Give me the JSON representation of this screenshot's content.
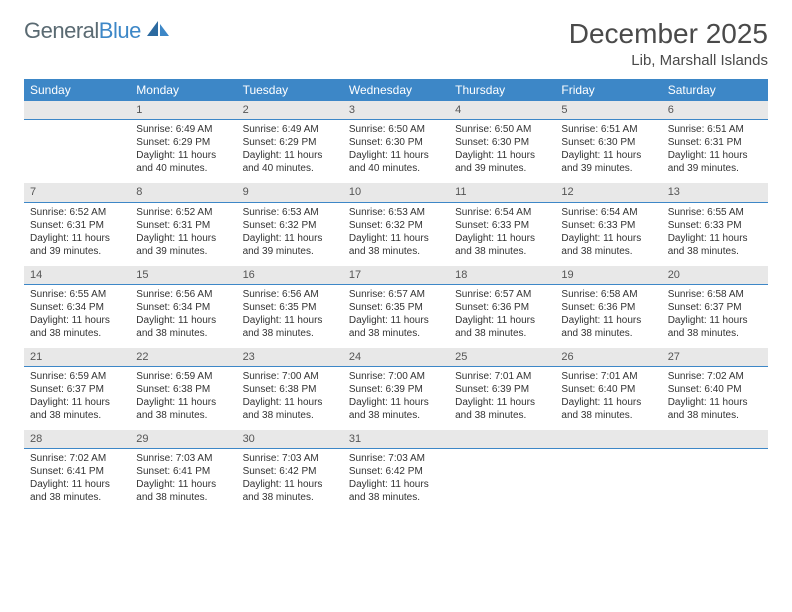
{
  "brand": {
    "part1": "General",
    "part2": "Blue"
  },
  "title": "December 2025",
  "location": "Lib, Marshall Islands",
  "colors": {
    "header_bg": "#3d87c7",
    "header_text": "#ffffff",
    "daynum_bg": "#e8e8e8",
    "text": "#333333",
    "rule": "#3d87c7"
  },
  "weekdays": [
    "Sunday",
    "Monday",
    "Tuesday",
    "Wednesday",
    "Thursday",
    "Friday",
    "Saturday"
  ],
  "weeks": [
    {
      "nums": [
        "",
        "1",
        "2",
        "3",
        "4",
        "5",
        "6"
      ],
      "cells": [
        null,
        {
          "sunrise": "6:49 AM",
          "sunset": "6:29 PM",
          "daylight": "11 hours and 40 minutes."
        },
        {
          "sunrise": "6:49 AM",
          "sunset": "6:29 PM",
          "daylight": "11 hours and 40 minutes."
        },
        {
          "sunrise": "6:50 AM",
          "sunset": "6:30 PM",
          "daylight": "11 hours and 40 minutes."
        },
        {
          "sunrise": "6:50 AM",
          "sunset": "6:30 PM",
          "daylight": "11 hours and 39 minutes."
        },
        {
          "sunrise": "6:51 AM",
          "sunset": "6:30 PM",
          "daylight": "11 hours and 39 minutes."
        },
        {
          "sunrise": "6:51 AM",
          "sunset": "6:31 PM",
          "daylight": "11 hours and 39 minutes."
        }
      ]
    },
    {
      "nums": [
        "7",
        "8",
        "9",
        "10",
        "11",
        "12",
        "13"
      ],
      "cells": [
        {
          "sunrise": "6:52 AM",
          "sunset": "6:31 PM",
          "daylight": "11 hours and 39 minutes."
        },
        {
          "sunrise": "6:52 AM",
          "sunset": "6:31 PM",
          "daylight": "11 hours and 39 minutes."
        },
        {
          "sunrise": "6:53 AM",
          "sunset": "6:32 PM",
          "daylight": "11 hours and 39 minutes."
        },
        {
          "sunrise": "6:53 AM",
          "sunset": "6:32 PM",
          "daylight": "11 hours and 38 minutes."
        },
        {
          "sunrise": "6:54 AM",
          "sunset": "6:33 PM",
          "daylight": "11 hours and 38 minutes."
        },
        {
          "sunrise": "6:54 AM",
          "sunset": "6:33 PM",
          "daylight": "11 hours and 38 minutes."
        },
        {
          "sunrise": "6:55 AM",
          "sunset": "6:33 PM",
          "daylight": "11 hours and 38 minutes."
        }
      ]
    },
    {
      "nums": [
        "14",
        "15",
        "16",
        "17",
        "18",
        "19",
        "20"
      ],
      "cells": [
        {
          "sunrise": "6:55 AM",
          "sunset": "6:34 PM",
          "daylight": "11 hours and 38 minutes."
        },
        {
          "sunrise": "6:56 AM",
          "sunset": "6:34 PM",
          "daylight": "11 hours and 38 minutes."
        },
        {
          "sunrise": "6:56 AM",
          "sunset": "6:35 PM",
          "daylight": "11 hours and 38 minutes."
        },
        {
          "sunrise": "6:57 AM",
          "sunset": "6:35 PM",
          "daylight": "11 hours and 38 minutes."
        },
        {
          "sunrise": "6:57 AM",
          "sunset": "6:36 PM",
          "daylight": "11 hours and 38 minutes."
        },
        {
          "sunrise": "6:58 AM",
          "sunset": "6:36 PM",
          "daylight": "11 hours and 38 minutes."
        },
        {
          "sunrise": "6:58 AM",
          "sunset": "6:37 PM",
          "daylight": "11 hours and 38 minutes."
        }
      ]
    },
    {
      "nums": [
        "21",
        "22",
        "23",
        "24",
        "25",
        "26",
        "27"
      ],
      "cells": [
        {
          "sunrise": "6:59 AM",
          "sunset": "6:37 PM",
          "daylight": "11 hours and 38 minutes."
        },
        {
          "sunrise": "6:59 AM",
          "sunset": "6:38 PM",
          "daylight": "11 hours and 38 minutes."
        },
        {
          "sunrise": "7:00 AM",
          "sunset": "6:38 PM",
          "daylight": "11 hours and 38 minutes."
        },
        {
          "sunrise": "7:00 AM",
          "sunset": "6:39 PM",
          "daylight": "11 hours and 38 minutes."
        },
        {
          "sunrise": "7:01 AM",
          "sunset": "6:39 PM",
          "daylight": "11 hours and 38 minutes."
        },
        {
          "sunrise": "7:01 AM",
          "sunset": "6:40 PM",
          "daylight": "11 hours and 38 minutes."
        },
        {
          "sunrise": "7:02 AM",
          "sunset": "6:40 PM",
          "daylight": "11 hours and 38 minutes."
        }
      ]
    },
    {
      "nums": [
        "28",
        "29",
        "30",
        "31",
        "",
        "",
        ""
      ],
      "cells": [
        {
          "sunrise": "7:02 AM",
          "sunset": "6:41 PM",
          "daylight": "11 hours and 38 minutes."
        },
        {
          "sunrise": "7:03 AM",
          "sunset": "6:41 PM",
          "daylight": "11 hours and 38 minutes."
        },
        {
          "sunrise": "7:03 AM",
          "sunset": "6:42 PM",
          "daylight": "11 hours and 38 minutes."
        },
        {
          "sunrise": "7:03 AM",
          "sunset": "6:42 PM",
          "daylight": "11 hours and 38 minutes."
        },
        null,
        null,
        null
      ]
    }
  ],
  "labels": {
    "sunrise": "Sunrise:",
    "sunset": "Sunset:",
    "daylight": "Daylight:"
  }
}
